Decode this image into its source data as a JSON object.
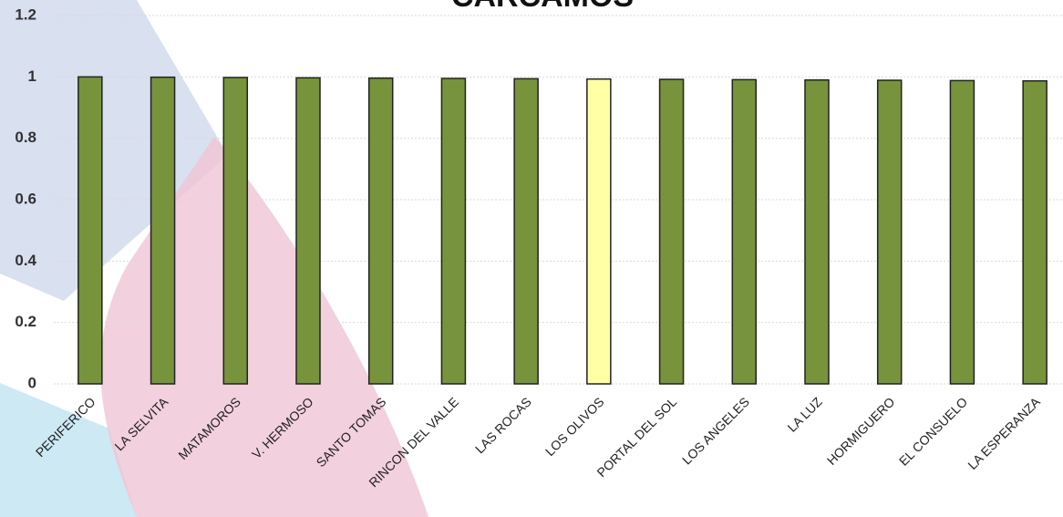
{
  "chart_data": {
    "type": "bar",
    "title": "CARCAMOS",
    "categories": [
      "PERIFERICO",
      "LA SELVITA",
      "MATAMOROS",
      "V. HERMOSO",
      "SANTO TOMAS",
      "RINCON DEL VALLE",
      "LAS ROCAS",
      "LOS OLIVOS",
      "PORTAL DEL SOL",
      "LOS ANGELES",
      "LA LUZ",
      "HORMIGUERO",
      "EL CONSUELO",
      "LA ESPERANZA"
    ],
    "values": [
      1,
      0.999,
      0.998,
      0.997,
      0.996,
      0.995,
      0.994,
      0.993,
      0.992,
      0.991,
      0.99,
      0.989,
      0.988,
      0.987
    ],
    "colors": [
      "#77933c",
      "#77933c",
      "#77933c",
      "#77933c",
      "#77933c",
      "#77933c",
      "#77933c",
      "#ffffa6",
      "#77933c",
      "#77933c",
      "#77933c",
      "#77933c",
      "#77933c",
      "#77933c"
    ],
    "ylim": [
      0,
      1.2
    ],
    "yticks": [
      0,
      0.2,
      0.4,
      0.6,
      0.8,
      1,
      1.2
    ],
    "grid": true
  }
}
